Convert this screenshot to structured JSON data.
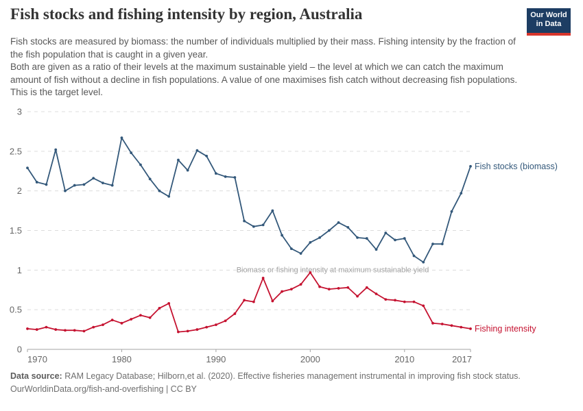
{
  "header": {
    "title": "Fish stocks and fishing intensity by region, Australia",
    "subtitle_para1": "Fish stocks are measured by biomass: the number of individuals multiplied by their mass. Fishing intensity by the fraction of the fish population that is caught in a given year.",
    "subtitle_para2": "Both are given as a ratio of their levels at the maximum sustainable yield – the level at which we can catch the maximum amount of fish without a decline in fish populations. A value of one maximises fish catch without decreasing fish populations. This is the target level.",
    "logo": {
      "line1": "Our World",
      "line2": "in Data",
      "bg_color": "#1d3d63",
      "accent_color": "#d8352c"
    }
  },
  "chart_data": {
    "type": "line",
    "title": "Fish stocks and fishing intensity by region, Australia",
    "xlabel": "",
    "ylabel": "",
    "xlim": [
      1970,
      2017
    ],
    "ylim": [
      0,
      3
    ],
    "x_ticks": [
      1970,
      1980,
      1990,
      2000,
      2010,
      2017
    ],
    "y_ticks": [
      0,
      0.5,
      1,
      1.5,
      2,
      2.5,
      3
    ],
    "grid": "horizontal-dashed",
    "legend_position": "end-of-line-labels",
    "annotation": "Biomass or fishing intensity at maximum sustainable yield",
    "annotation_y": 1,
    "x": [
      1970,
      1971,
      1972,
      1973,
      1974,
      1975,
      1976,
      1977,
      1978,
      1979,
      1980,
      1981,
      1982,
      1983,
      1984,
      1985,
      1986,
      1987,
      1988,
      1989,
      1990,
      1991,
      1992,
      1993,
      1994,
      1995,
      1996,
      1997,
      1998,
      1999,
      2000,
      2001,
      2002,
      2003,
      2004,
      2005,
      2006,
      2007,
      2008,
      2009,
      2010,
      2011,
      2012,
      2013,
      2014,
      2015,
      2016,
      2017
    ],
    "series": [
      {
        "name": "Fish stocks (biomass)",
        "color": "#33587a",
        "values": [
          2.29,
          2.11,
          2.08,
          2.52,
          2.0,
          2.07,
          2.08,
          2.16,
          2.1,
          2.07,
          2.67,
          2.48,
          2.33,
          2.15,
          2.0,
          1.93,
          2.39,
          2.26,
          2.51,
          2.44,
          2.22,
          2.18,
          2.17,
          1.62,
          1.55,
          1.57,
          1.75,
          1.44,
          1.27,
          1.21,
          1.35,
          1.41,
          1.5,
          1.6,
          1.54,
          1.41,
          1.4,
          1.26,
          1.47,
          1.38,
          1.4,
          1.18,
          1.1,
          1.33,
          1.33,
          1.74,
          1.97,
          2.31
        ]
      },
      {
        "name": "Fishing intensity",
        "color": "#c51230",
        "values": [
          0.26,
          0.25,
          0.28,
          0.25,
          0.24,
          0.24,
          0.23,
          0.28,
          0.31,
          0.37,
          0.33,
          0.38,
          0.43,
          0.4,
          0.52,
          0.58,
          0.22,
          0.23,
          0.25,
          0.28,
          0.31,
          0.36,
          0.45,
          0.62,
          0.6,
          0.9,
          0.61,
          0.73,
          0.76,
          0.82,
          0.97,
          0.79,
          0.76,
          0.77,
          0.78,
          0.67,
          0.78,
          0.7,
          0.63,
          0.62,
          0.6,
          0.6,
          0.55,
          0.33,
          0.32,
          0.3,
          0.28,
          0.26
        ]
      }
    ]
  },
  "footer": {
    "datasource_label": "Data source:",
    "datasource_text": " RAM Legacy Database; Hilborn,et al. (2020). Effective fisheries management instrumental in improving fish stock status.",
    "link_line": "OurWorldinData.org/fish-and-overfishing | CC BY"
  }
}
